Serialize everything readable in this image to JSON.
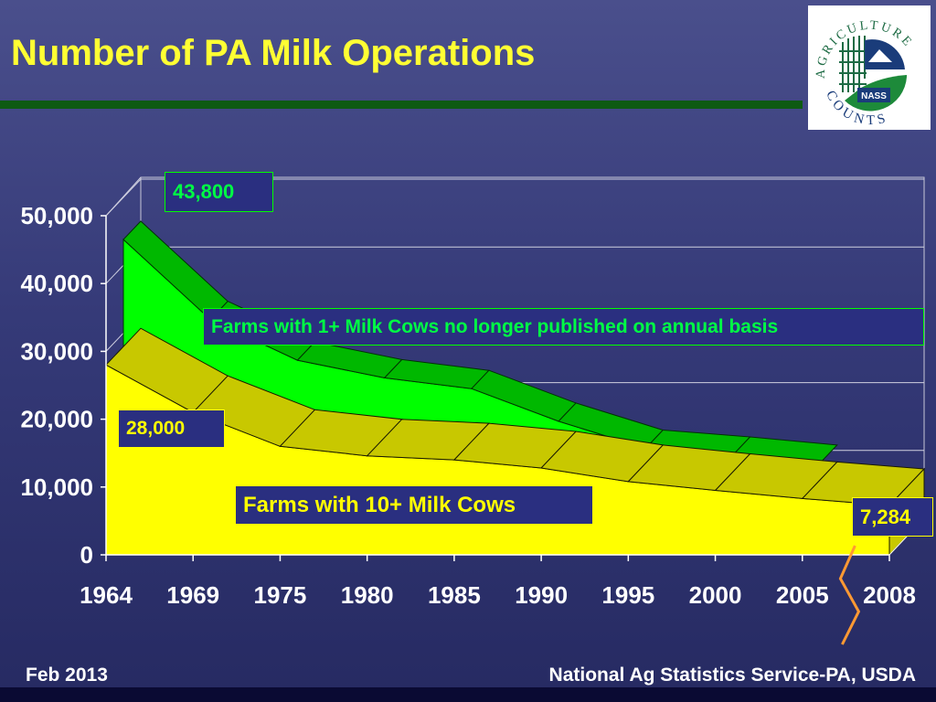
{
  "slide": {
    "title": "Number of PA Milk Operations",
    "footer_left": "Feb 2013",
    "footer_right": "National Ag Statistics Service-PA, USDA"
  },
  "logo": {
    "text_top": "AGRICULTURE",
    "text_bottom": "COUNTS",
    "badge": "NASS"
  },
  "callouts": {
    "peak": "43,800",
    "note_1plus": "Farms with 1+ Milk Cows no longer published on annual basis",
    "start_10plus": "28,000",
    "label_10plus": "Farms with 10+ Milk Cows",
    "end_10plus": "7,284"
  },
  "colors": {
    "all_farms": "#00ff00",
    "ten_plus": "#ffff00",
    "callout_green_text": "#00ff44",
    "callout_yellow_text": "#ffff00",
    "callout_box": "#2a2f80",
    "axis_break": "#ff9933"
  },
  "chart_data": {
    "type": "area",
    "title": "",
    "xlabel": "",
    "ylabel": "",
    "ylim": [
      0,
      50000
    ],
    "y_ticks": [
      0,
      10000,
      20000,
      30000,
      40000,
      50000
    ],
    "y_tick_labels": [
      "0",
      "10,000",
      "20,000",
      "30,000",
      "40,000",
      "50,000"
    ],
    "x_tick_labels": [
      "1964",
      "1969",
      "1975",
      "1980",
      "1985",
      "1990",
      "1995",
      "2000",
      "2005",
      "2008"
    ],
    "grid": true,
    "three_d": true,
    "series": [
      {
        "name": "Farms with 1+ Milk Cows",
        "values": [
          43800,
          32000,
          26000,
          23400,
          21800,
          17000,
          13000,
          12000,
          10800,
          null
        ]
      },
      {
        "name": "Farms with 10+ Milk Cows",
        "values": [
          28000,
          21000,
          16000,
          14600,
          14000,
          12800,
          10800,
          9500,
          8300,
          7284
        ]
      }
    ]
  }
}
